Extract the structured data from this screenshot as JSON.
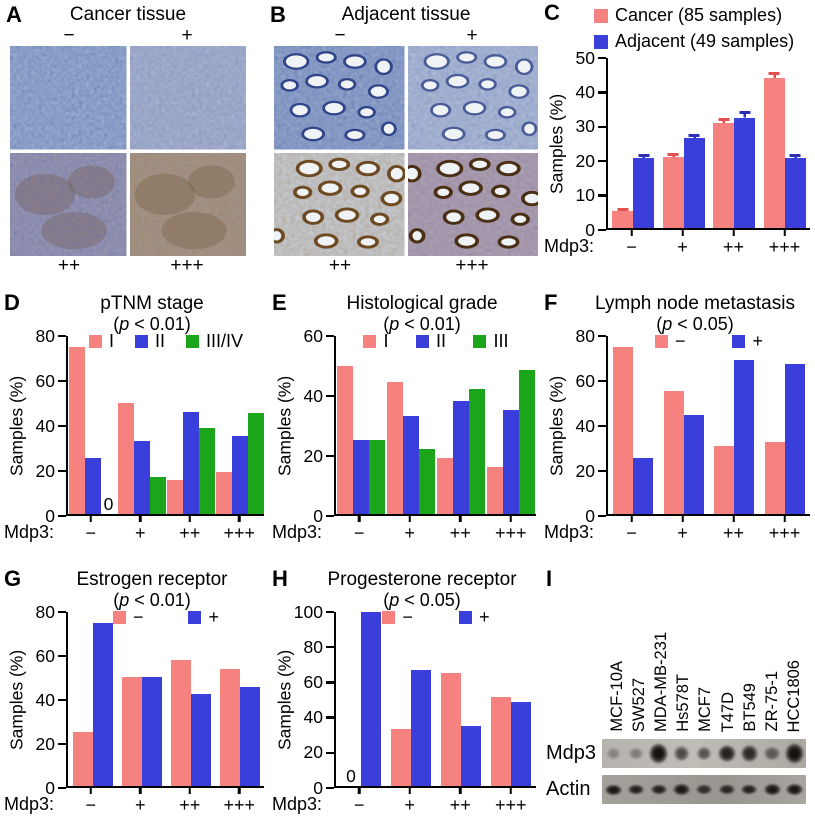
{
  "figure": {
    "panels": {
      "A": {
        "label": "A",
        "title": "Cancer tissue",
        "images": [
          {
            "label": "−",
            "tone": "#9AADD0",
            "stain": "blue"
          },
          {
            "label": "+",
            "tone": "#A9B2CE",
            "stain": "blue-light"
          },
          {
            "label": "++",
            "tone": "#9B95AF",
            "stain": "blue-brown"
          },
          {
            "label": "+++",
            "tone": "#A2938B",
            "stain": "brown"
          }
        ]
      },
      "B": {
        "label": "B",
        "title": "Adjacent tissue",
        "images": [
          {
            "label": "−",
            "tone": "#93A6CB",
            "stain": "blue",
            "ducts": true
          },
          {
            "label": "+",
            "tone": "#AEBBD6",
            "stain": "blue-light",
            "ducts": true
          },
          {
            "label": "++",
            "tone": "#C6CBD4",
            "stain": "brown-light",
            "ducts": true
          },
          {
            "label": "+++",
            "tone": "#ACA1B1",
            "stain": "purple-brown",
            "ducts": true
          }
        ]
      },
      "C": {
        "label": "C"
      },
      "D": {
        "label": "D"
      },
      "E": {
        "label": "E"
      },
      "F": {
        "label": "F"
      },
      "G": {
        "label": "G"
      },
      "H": {
        "label": "H"
      },
      "I": {
        "label": "I",
        "cell_lines": [
          "MCF-10A",
          "SW527",
          "MDA-MB-231",
          "Hs578T",
          "MCF7",
          "T47D",
          "BT549",
          "ZR-75-1",
          "HCC1806"
        ],
        "rows": [
          {
            "name": "Mdp3",
            "band_intensity": [
              0.3,
              0.35,
              1,
              0.65,
              0.6,
              0.9,
              0.85,
              0.55,
              1
            ],
            "band_size": [
              0.5,
              0.55,
              1.45,
              0.85,
              0.75,
              1.15,
              1.05,
              0.8,
              1.4
            ]
          },
          {
            "name": "Actin",
            "band_intensity": [
              0.95,
              0.9,
              0.9,
              0.95,
              0.8,
              0.85,
              0.9,
              0.95,
              0.95
            ],
            "band_size": [
              1,
              0.95,
              0.95,
              1.05,
              0.8,
              0.95,
              0.95,
              1.05,
              1.1
            ]
          }
        ]
      }
    }
  },
  "colors": {
    "pink": "#F5827F",
    "blue": "#3A3EDB",
    "green": "#1BA51B",
    "pink_error": "#E25050",
    "blue_error": "#2B2FB8",
    "axis": "#000000"
  },
  "chart_data": [
    {
      "panel": "C",
      "type": "bar",
      "title": "",
      "subtitle": "",
      "ylabel": "Samples (%)",
      "ylim": [
        0,
        50
      ],
      "yticks": [
        0,
        10,
        20,
        30,
        40,
        50
      ],
      "x_prefix": "Mdp3:",
      "categories": [
        "−",
        "+",
        "++",
        "+++"
      ],
      "legend_position": "above-left",
      "series": [
        {
          "name": "Cancer (85 samples)",
          "color": "#F5827F",
          "error_color": "#E25050",
          "values": [
            5,
            21,
            31,
            44
          ],
          "errors": [
            0.6,
            1.2,
            1.5,
            1.8
          ]
        },
        {
          "name": "Adjacent (49 samples)",
          "color": "#3A3EDB",
          "error_color": "#2B2FB8",
          "values": [
            20.5,
            26.5,
            32.5,
            20.5
          ],
          "errors": [
            1.2,
            1.2,
            1.8,
            1.2
          ]
        }
      ]
    },
    {
      "panel": "D",
      "type": "bar",
      "title": "pTNM stage",
      "subtitle": "(p < 0.01)",
      "ylabel": "Samples (%)",
      "ylim": [
        0,
        80
      ],
      "yticks": [
        0,
        20,
        40,
        60,
        80
      ],
      "x_prefix": "Mdp3:",
      "categories": [
        "−",
        "+",
        "++",
        "+++"
      ],
      "legend_position": "top",
      "series": [
        {
          "name": "I",
          "color": "#F5827F",
          "values": [
            75,
            50,
            15.5,
            19
          ]
        },
        {
          "name": "II",
          "color": "#3A3EDB",
          "values": [
            25,
            33,
            46,
            35
          ]
        },
        {
          "name": "III/IV",
          "color": "#1BA51B",
          "values": [
            0,
            16.5,
            38.5,
            45.5
          ]
        }
      ],
      "zero_labels": [
        {
          "category": 0,
          "series": 2
        }
      ]
    },
    {
      "panel": "E",
      "type": "bar",
      "title": "Histological grade",
      "subtitle": "(p < 0.01)",
      "ylabel": "Samples (%)",
      "ylim": [
        0,
        60
      ],
      "yticks": [
        0,
        20,
        40,
        60
      ],
      "x_prefix": "Mdp3:",
      "categories": [
        "−",
        "+",
        "++",
        "+++"
      ],
      "legend_position": "top",
      "series": [
        {
          "name": "I",
          "color": "#F5827F",
          "values": [
            50,
            44.5,
            19,
            16
          ]
        },
        {
          "name": "II",
          "color": "#3A3EDB",
          "values": [
            25,
            33,
            38,
            35
          ]
        },
        {
          "name": "III",
          "color": "#1BA51B",
          "values": [
            25,
            22,
            42,
            48.5
          ]
        }
      ]
    },
    {
      "panel": "F",
      "type": "bar",
      "title": "Lymph node metastasis",
      "subtitle": "(p < 0.05)",
      "ylabel": "Samples (%)",
      "ylim": [
        0,
        80
      ],
      "yticks": [
        0,
        20,
        40,
        60,
        80
      ],
      "x_prefix": "Mdp3:",
      "categories": [
        "−",
        "+",
        "++",
        "+++"
      ],
      "legend_position": "top",
      "series": [
        {
          "name": "−",
          "color": "#F5827F",
          "values": [
            75,
            55.5,
            30.5,
            32.5
          ]
        },
        {
          "name": "+",
          "color": "#3A3EDB",
          "values": [
            25,
            44.5,
            69,
            67.5
          ]
        }
      ]
    },
    {
      "panel": "G",
      "type": "bar",
      "title": "Estrogen receptor",
      "subtitle": "(p < 0.01)",
      "ylabel": "Samples (%)",
      "ylim": [
        0,
        80
      ],
      "yticks": [
        0,
        20,
        40,
        60,
        80
      ],
      "x_prefix": "Mdp3:",
      "categories": [
        "−",
        "+",
        "++",
        "+++"
      ],
      "legend_position": "top",
      "series": [
        {
          "name": "−",
          "color": "#F5827F",
          "values": [
            25,
            50,
            58,
            54
          ]
        },
        {
          "name": "+",
          "color": "#3A3EDB",
          "values": [
            75,
            50,
            42.5,
            45.5
          ]
        }
      ]
    },
    {
      "panel": "H",
      "type": "bar",
      "title": "Progesterone receptor",
      "subtitle": "(p < 0.05)",
      "ylabel": "Samples (%)",
      "ylim": [
        0,
        100
      ],
      "yticks": [
        0,
        20,
        40,
        60,
        80,
        100
      ],
      "x_prefix": "Mdp3:",
      "categories": [
        "−",
        "+",
        "++",
        "+++"
      ],
      "legend_position": "top",
      "series": [
        {
          "name": "−",
          "color": "#F5827F",
          "values": [
            0,
            33,
            65,
            51
          ]
        },
        {
          "name": "+",
          "color": "#3A3EDB",
          "values": [
            100,
            66.5,
            34.5,
            48.5
          ]
        }
      ],
      "zero_labels": [
        {
          "category": 0,
          "series": 0
        }
      ]
    }
  ]
}
